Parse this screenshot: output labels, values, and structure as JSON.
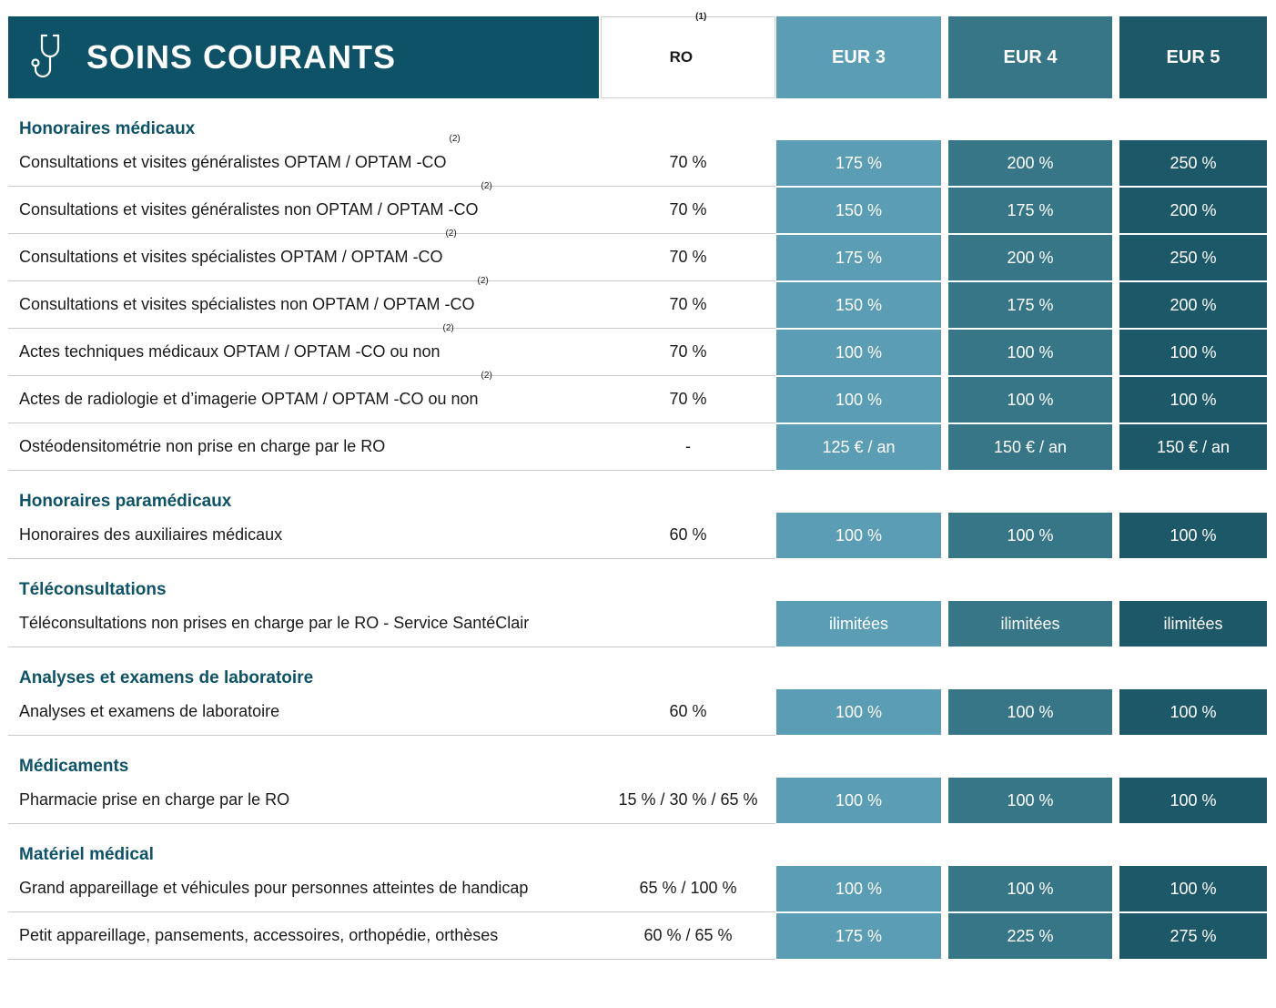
{
  "header": {
    "title": "SOINS COURANTS",
    "columns": [
      {
        "label": "RO",
        "note": "(1)"
      },
      {
        "label": "EUR 3"
      },
      {
        "label": "EUR 4"
      },
      {
        "label": "EUR 5"
      }
    ]
  },
  "sections": [
    {
      "title": "Honoraires médicaux",
      "rows": [
        {
          "label": "Consultations et visites généralistes OPTAM / OPTAM -CO",
          "note": "(2)",
          "values": [
            "70 %",
            "175 %",
            "200 %",
            "250 %"
          ]
        },
        {
          "label": "Consultations et visites généralistes non OPTAM / OPTAM -CO",
          "note": "(2)",
          "values": [
            "70 %",
            "150 %",
            "175 %",
            "200 %"
          ]
        },
        {
          "label": "Consultations et visites spécialistes OPTAM / OPTAM -CO",
          "note": "(2)",
          "values": [
            "70 %",
            "175 %",
            "200 %",
            "250 %"
          ]
        },
        {
          "label": "Consultations et visites spécialistes non OPTAM / OPTAM -CO",
          "note": "(2)",
          "values": [
            "70 %",
            "150 %",
            "175 %",
            "200 %"
          ]
        },
        {
          "label": "Actes techniques médicaux OPTAM / OPTAM -CO ou non",
          "note": "(2)",
          "values": [
            "70 %",
            "100 %",
            "100 %",
            "100 %"
          ]
        },
        {
          "label": "Actes de radiologie et d’imagerie OPTAM / OPTAM -CO ou non",
          "note": "(2)",
          "values": [
            "70 %",
            "100 %",
            "100 %",
            "100 %"
          ]
        },
        {
          "label": "Ostéodensitométrie non prise en charge par le RO",
          "values": [
            "-",
            "125 € / an",
            "150 € / an",
            "150 € / an"
          ]
        }
      ]
    },
    {
      "title": "Honoraires paramédicaux",
      "rows": [
        {
          "label": "Honoraires des auxiliaires médicaux",
          "values": [
            "60 %",
            "100 %",
            "100 %",
            "100 %"
          ]
        }
      ]
    },
    {
      "title": "Téléconsultations",
      "rows": [
        {
          "label": "Téléconsultations non prises en charge par le RO - Service SantéClair",
          "values": [
            null,
            "ilimitées",
            "ilimitées",
            "ilimitées"
          ]
        }
      ]
    },
    {
      "title": "Analyses et examens de laboratoire",
      "rows": [
        {
          "label": "Analyses et examens de laboratoire",
          "values": [
            "60 %",
            "100 %",
            "100 %",
            "100 %"
          ]
        }
      ]
    },
    {
      "title": "Médicaments",
      "rows": [
        {
          "label": "Pharmacie prise en charge par le RO",
          "values": [
            "15 % / 30 % / 65 %",
            "100 %",
            "100 %",
            "100 %"
          ]
        }
      ]
    },
    {
      "title": "Matériel médical",
      "rows": [
        {
          "label": "Grand appareillage et véhicules pour personnes atteintes de handicap",
          "values": [
            "65 % / 100 %",
            "100 %",
            "100 %",
            "100 %"
          ]
        },
        {
          "label": "Petit appareillage, pansements, accessoires, orthopédie, orthèses",
          "values": [
            "60 % / 65 %",
            "175 %",
            "225 %",
            "275 %"
          ]
        }
      ]
    }
  ]
}
